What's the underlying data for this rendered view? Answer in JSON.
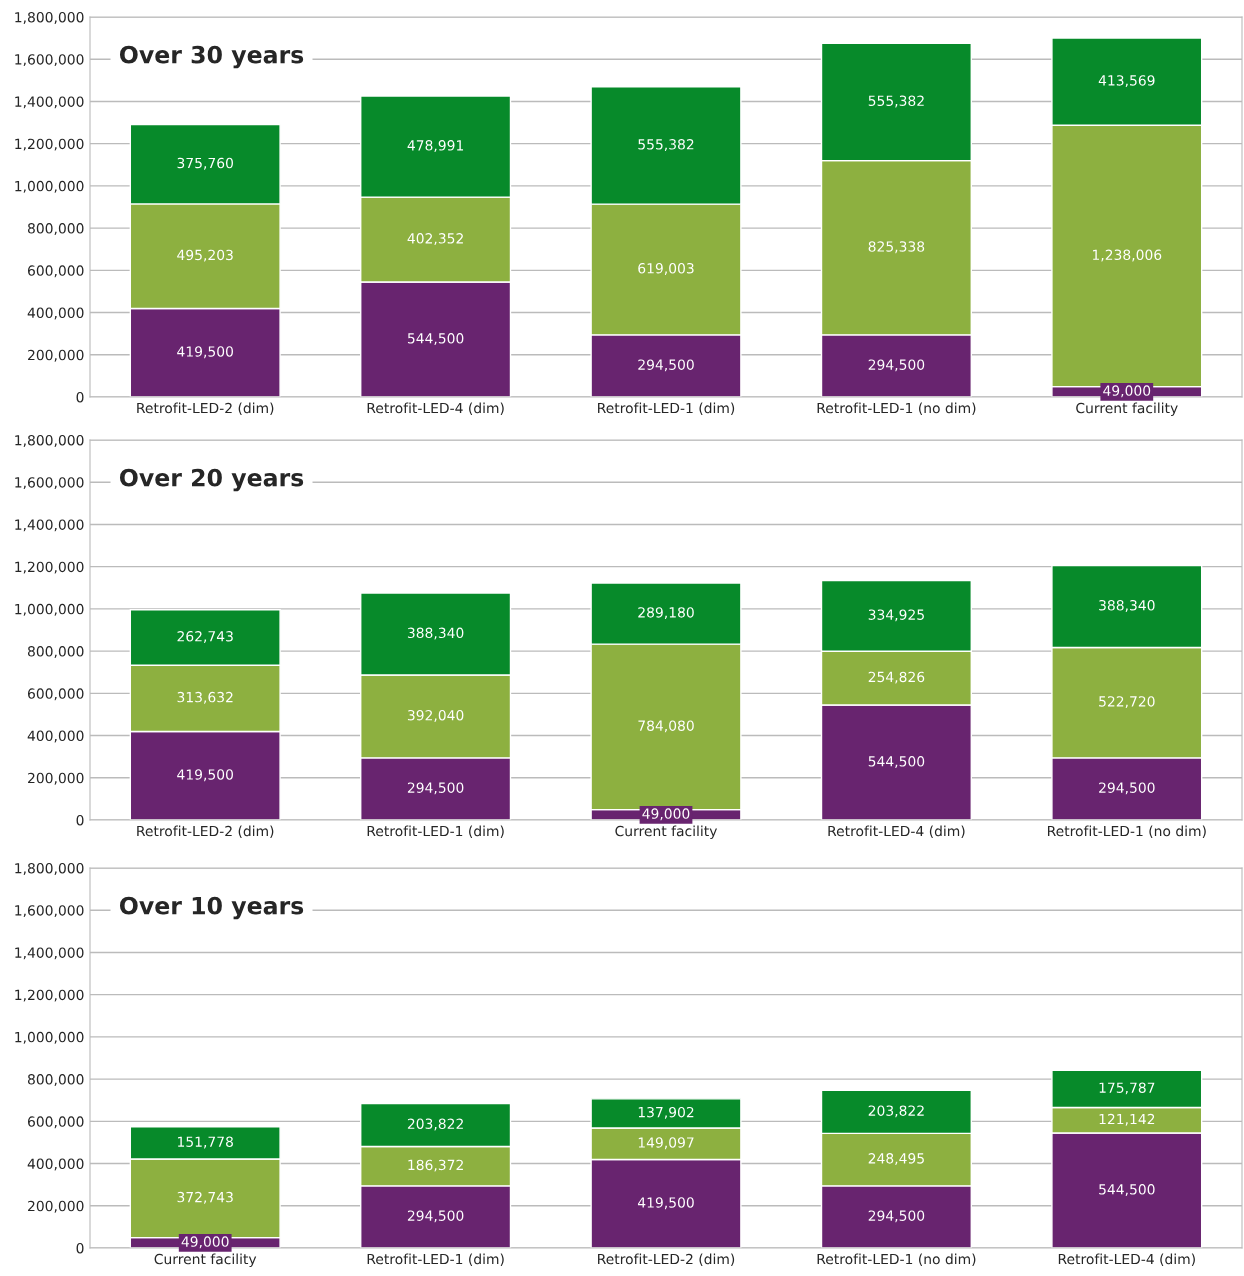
{
  "chart_data": [
    {
      "type": "bar",
      "title": "Over 30 years",
      "stacked": true,
      "grid": "y",
      "legend": false,
      "categories": [
        "Retrofit-LED-2 (dim)",
        "Retrofit-LED-4 (dim)",
        "Retrofit-LED-1 (dim)",
        "Retrofit-LED-1 (no dim)",
        "Current facility"
      ],
      "series": [
        {
          "color": "#68246f",
          "values": [
            419500,
            544500,
            294500,
            294500,
            49000
          ],
          "value_labels": [
            "419,500",
            "544,500",
            "294,500",
            "294,500",
            "49,000"
          ]
        },
        {
          "color": "#8db040",
          "values": [
            495203,
            402352,
            619003,
            825338,
            1238006
          ],
          "value_labels": [
            "495,203",
            "402,352",
            "619,003",
            "825,338",
            "1,238,006"
          ]
        },
        {
          "color": "#078a2a",
          "values": [
            375760,
            478991,
            555382,
            555382,
            413569
          ],
          "value_labels": [
            "375,760",
            "478,991",
            "555,382",
            "555,382",
            "413,569"
          ]
        }
      ],
      "ylim": [
        0,
        1800000
      ],
      "yticks": [
        0,
        {
          "value": 200000,
          "label": "200,000"
        },
        {
          "value": 400000,
          "label": "400,000"
        },
        {
          "value": 600000,
          "label": "600,000"
        },
        {
          "value": 800000,
          "label": "800,000"
        },
        {
          "value": 1000000,
          "label": "1,000,000"
        },
        {
          "value": 1200000,
          "label": "1,200,000"
        },
        {
          "value": 1400000,
          "label": "1,400,000"
        },
        {
          "value": 1600000,
          "label": "1,600,000"
        },
        {
          "value": 1800000,
          "label": "1,800,000"
        }
      ]
    },
    {
      "type": "bar",
      "title": "Over 20 years",
      "stacked": true,
      "grid": "y",
      "legend": false,
      "categories": [
        "Retrofit-LED-2 (dim)",
        "Retrofit-LED-1 (dim)",
        "Current facility",
        "Retrofit-LED-4 (dim)",
        "Retrofit-LED-1 (no dim)"
      ],
      "series": [
        {
          "color": "#68246f",
          "values": [
            419500,
            294500,
            49000,
            544500,
            294500
          ],
          "value_labels": [
            "419,500",
            "294,500",
            "49,000",
            "544,500",
            "294,500"
          ]
        },
        {
          "color": "#8db040",
          "values": [
            313632,
            392040,
            784080,
            254826,
            522720
          ],
          "value_labels": [
            "313,632",
            "392,040",
            "784,080",
            "254,826",
            "522,720"
          ]
        },
        {
          "color": "#078a2a",
          "values": [
            262743,
            388340,
            289180,
            334925,
            388340
          ],
          "value_labels": [
            "262,743",
            "388,340",
            "289,180",
            "334,925",
            "388,340"
          ]
        }
      ],
      "ylim": [
        0,
        1800000
      ],
      "yticks": [
        0,
        {
          "value": 200000,
          "label": "200,000"
        },
        {
          "value": 400000,
          "label": "400,000"
        },
        {
          "value": 600000,
          "label": "600,000"
        },
        {
          "value": 800000,
          "label": "800,000"
        },
        {
          "value": 1000000,
          "label": "1,000,000"
        },
        {
          "value": 1200000,
          "label": "1,200,000"
        },
        {
          "value": 1400000,
          "label": "1,400,000"
        },
        {
          "value": 1600000,
          "label": "1,600,000"
        },
        {
          "value": 1800000,
          "label": "1,800,000"
        }
      ]
    },
    {
      "type": "bar",
      "title": "Over 10 years",
      "stacked": true,
      "grid": "y",
      "legend": false,
      "categories": [
        "Current facility",
        "Retrofit-LED-1 (dim)",
        "Retrofit-LED-2 (dim)",
        "Retrofit-LED-1 (no dim)",
        "Retrofit-LED-4 (dim)"
      ],
      "series": [
        {
          "color": "#68246f",
          "values": [
            49000,
            294500,
            419500,
            294500,
            544500
          ],
          "value_labels": [
            "49,000",
            "294,500",
            "419,500",
            "294,500",
            "544,500"
          ]
        },
        {
          "color": "#8db040",
          "values": [
            372743,
            186372,
            149097,
            248495,
            121142
          ],
          "value_labels": [
            "372,743",
            "186,372",
            "149,097",
            "248,495",
            "121,142"
          ]
        },
        {
          "color": "#078a2a",
          "values": [
            151778,
            203822,
            137902,
            203822,
            175787
          ],
          "value_labels": [
            "151,778",
            "203,822",
            "137,902",
            "203,822",
            "175,787"
          ]
        }
      ],
      "ylim": [
        0,
        1800000
      ],
      "yticks": [
        0,
        {
          "value": 200000,
          "label": "200,000"
        },
        {
          "value": 400000,
          "label": "400,000"
        },
        {
          "value": 600000,
          "label": "600,000"
        },
        {
          "value": 800000,
          "label": "800,000"
        },
        {
          "value": 1000000,
          "label": "1,000,000"
        },
        {
          "value": 1200000,
          "label": "1,200,000"
        },
        {
          "value": 1400000,
          "label": "1,400,000"
        },
        {
          "value": 1600000,
          "label": "1,600,000"
        },
        {
          "value": 1800000,
          "label": "1,800,000"
        }
      ]
    }
  ]
}
